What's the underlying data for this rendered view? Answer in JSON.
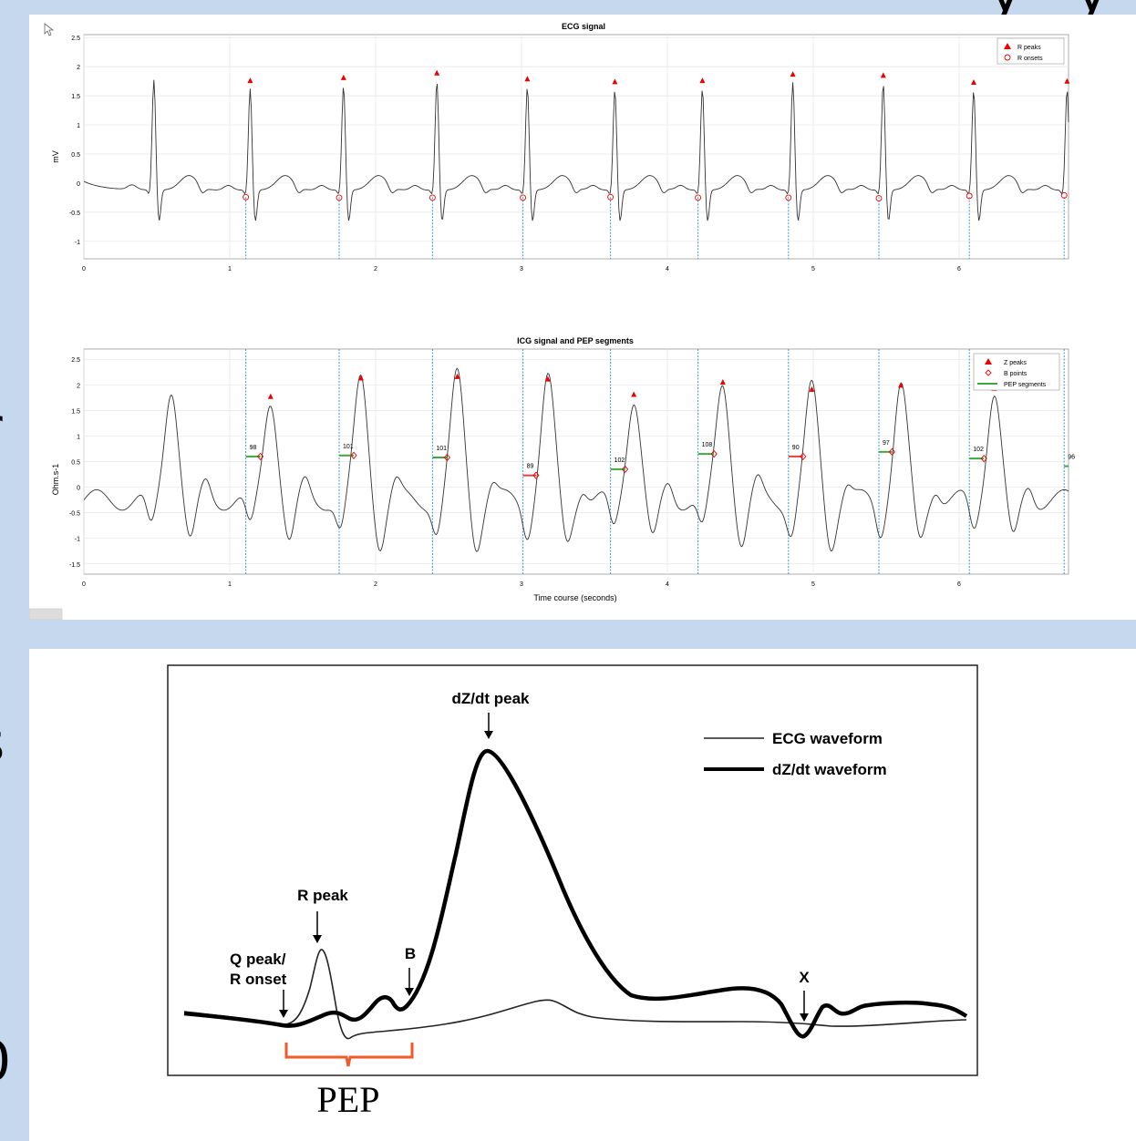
{
  "slide_fragments": [
    "y",
    "y",
    "r",
    "s",
    "0"
  ],
  "colors": {
    "slide_bg": "#c6d8ee",
    "trace": "#333333",
    "marker_red": "#ee0000",
    "marker_blue": "#3a9ad9",
    "pep_green": "#3aaa3a",
    "pep_red": "#e04040",
    "brace": "#f05a28"
  },
  "ecg_plot": {
    "title": "ECG signal",
    "ylabel": "mV",
    "xlim": [
      0,
      6.75
    ],
    "ylim": [
      -1.3,
      2.55
    ],
    "yticks": [
      "2.5",
      "2",
      "1.5",
      "1",
      "0.5",
      "0",
      "-0.5",
      "-1"
    ],
    "xticks": [
      "0",
      "1",
      "2",
      "3",
      "4",
      "5",
      "6"
    ],
    "legend": [
      "R peaks",
      "R onsets"
    ]
  },
  "icg_plot": {
    "title": "ICG signal and PEP segments",
    "ylabel": "Ohm.s-1",
    "xlabel": "Time course (seconds)",
    "xlim": [
      0,
      6.75
    ],
    "ylim": [
      -1.7,
      2.7
    ],
    "yticks": [
      "2.5",
      "2",
      "1.5",
      "1",
      "0.5",
      "0",
      "-0.5",
      "-1",
      "-1.5"
    ],
    "xticks": [
      "0",
      "1",
      "2",
      "3",
      "4",
      "5",
      "6"
    ],
    "legend": [
      "Z peaks",
      "B points",
      "PEP segments"
    ]
  },
  "chart_data": [
    {
      "type": "line",
      "title": "ECG signal",
      "xlabel": "",
      "ylabel": "mV",
      "xlim": [
        0,
        6.75
      ],
      "ylim": [
        -1.3,
        2.55
      ],
      "series": [
        {
          "name": "R peaks",
          "x": [
            1.14,
            1.78,
            2.42,
            3.04,
            3.64,
            4.24,
            4.86,
            5.48,
            6.1,
            6.74
          ],
          "values": [
            1.75,
            1.8,
            1.88,
            1.78,
            1.73,
            1.75,
            1.86,
            1.84,
            1.72,
            1.74
          ]
        },
        {
          "name": "R onsets",
          "x": [
            1.11,
            1.75,
            2.39,
            3.01,
            3.61,
            4.21,
            4.83,
            5.45,
            6.07,
            6.72
          ],
          "values": [
            -0.24,
            -0.25,
            -0.25,
            -0.25,
            -0.24,
            -0.25,
            -0.25,
            -0.26,
            -0.22,
            -0.21
          ]
        }
      ]
    },
    {
      "type": "line",
      "title": "ICG signal and PEP segments",
      "xlabel": "Time course (seconds)",
      "ylabel": "Ohm.s-1",
      "xlim": [
        0,
        6.75
      ],
      "ylim": [
        -1.7,
        2.7
      ],
      "series": [
        {
          "name": "Z peaks",
          "x": [
            1.28,
            1.9,
            2.56,
            3.18,
            3.77,
            4.38,
            4.99,
            5.6,
            6.24
          ],
          "values": [
            1.76,
            2.12,
            2.15,
            2.1,
            1.8,
            2.04,
            1.9,
            1.98,
            1.92
          ]
        },
        {
          "name": "B points",
          "x": [
            1.21,
            1.85,
            2.49,
            3.1,
            3.71,
            4.32,
            4.93,
            5.54,
            6.17
          ],
          "values": [
            0.6,
            0.62,
            0.58,
            0.23,
            0.35,
            0.65,
            0.6,
            0.69,
            0.56
          ]
        },
        {
          "name": "PEP segments",
          "labels": [
            "98",
            "101",
            "101",
            "89",
            "102",
            "108",
            "90",
            "97",
            "102",
            "96"
          ],
          "start": [
            1.11,
            1.75,
            2.39,
            3.01,
            3.61,
            4.21,
            4.83,
            5.45,
            6.07,
            6.72
          ],
          "end": [
            1.21,
            1.85,
            2.49,
            3.1,
            3.71,
            4.32,
            4.93,
            5.54,
            6.17,
            6.75
          ],
          "values": [
            0.6,
            0.62,
            0.58,
            0.23,
            0.35,
            0.65,
            0.6,
            0.69,
            0.56,
            0.41
          ]
        }
      ]
    }
  ],
  "diagram": {
    "legend_ecg": "ECG waveform",
    "legend_dzdt": "dZ/dt waveform",
    "label_dzdt_peak": "dZ/dt peak",
    "label_r_peak": "R peak",
    "label_q_peak": "Q peak/",
    "label_r_onset": "R onset",
    "label_b": "B",
    "label_x": "X",
    "label_pep": "PEP"
  }
}
